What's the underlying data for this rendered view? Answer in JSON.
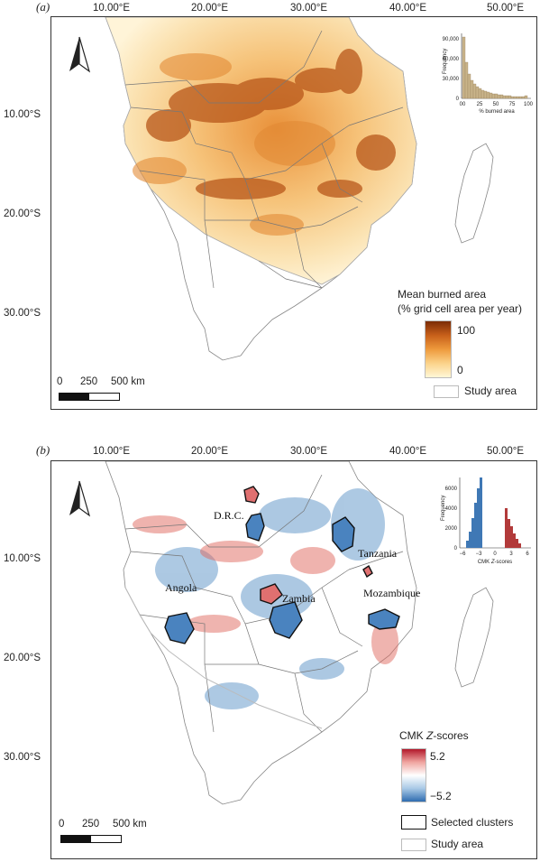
{
  "panel_a": {
    "label": "(a)",
    "lon_labels": [
      "10.00°E",
      "20.00°E",
      "30.00°E",
      "40.00°E",
      "50.00°E"
    ],
    "lat_labels": [
      "10.00°S",
      "20.00°S",
      "30.00°S"
    ],
    "legend": {
      "title_line1": "Mean burned area",
      "title_line2": "(% grid cell area per year)",
      "max_label": "100",
      "min_label": "0",
      "colors": [
        "#fff7d6",
        "#fbd38a",
        "#ee9a3c",
        "#c8601a",
        "#7a2c06"
      ],
      "study_area_label": "Study area"
    },
    "scalebar": {
      "labels": [
        "0",
        "250",
        "500 km"
      ]
    },
    "inset": {
      "ylabel": "Frequency",
      "xlabel": "% burned area",
      "yticks": [
        "90,000",
        "60,000",
        "30,000",
        "0"
      ],
      "xticks": [
        "00",
        "25",
        "50",
        "75",
        "100"
      ]
    },
    "north_arrow_icon": "north-arrow-icon"
  },
  "panel_b": {
    "label": "(b)",
    "lon_labels": [
      "10.00°E",
      "20.00°E",
      "30.00°E",
      "40.00°E",
      "50.00°E"
    ],
    "lat_labels": [
      "10.00°S",
      "20.00°S",
      "30.00°S"
    ],
    "country_labels": [
      "D.R.C.",
      "Tanzania",
      "Angola",
      "Zambia",
      "Mozambique"
    ],
    "legend": {
      "title_prefix": "CMK ",
      "title_italic": "Z",
      "title_suffix": "-scores",
      "max_label": "5.2",
      "min_label": "−5.2",
      "colors": [
        "#2f6cb0",
        "#a9c9e6",
        "#ffffff",
        "#f0a5a0",
        "#b2182b"
      ],
      "selected_clusters_label": "Selected clusters",
      "study_area_label": "Study area"
    },
    "scalebar": {
      "labels": [
        "0",
        "250",
        "500 km"
      ]
    },
    "inset": {
      "ylabel": "Frequency",
      "xlabel_prefix": "CMK ",
      "xlabel_italic": "Z",
      "xlabel_suffix": "-scores",
      "yticks": [
        "6000",
        "4000",
        "2000",
        "0"
      ],
      "xticks": [
        "−6",
        "−3",
        "0",
        "3",
        "6"
      ]
    },
    "north_arrow_icon": "north-arrow-icon"
  }
}
